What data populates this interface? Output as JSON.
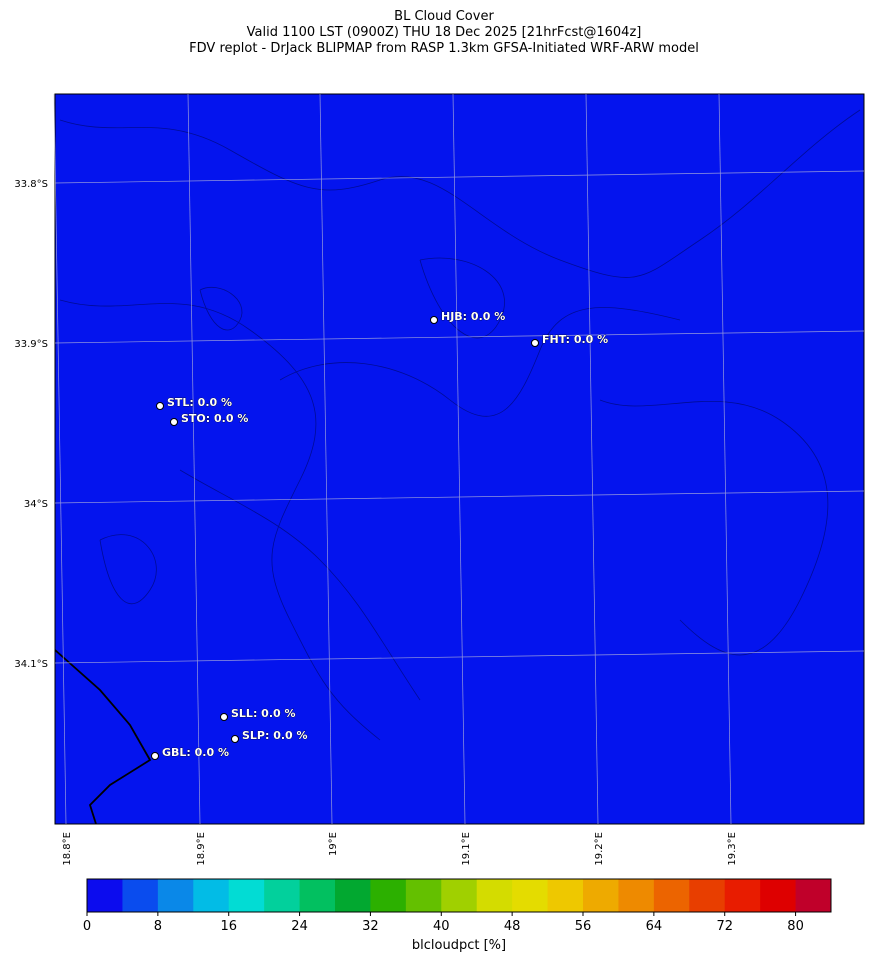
{
  "title": [
    "BL Cloud Cover",
    "Valid 1100 LST (0900Z) THU 18 Dec 2025 [21hrFcst@1604z]",
    "FDV replot - DrJack BLIPMAP from RASP 1.3km GFSA-Initiated WRF-ARW model"
  ],
  "map": {
    "lat_labels": [
      "33.8°S",
      "33.9°S",
      "34°S",
      "34.1°S"
    ],
    "lon_labels": [
      "18.8°E",
      "18.9°E",
      "19°E",
      "19.1°E",
      "19.2°E",
      "19.3°E"
    ],
    "stations": [
      "HJB: 0.0 %",
      "FHT: 0.0 %",
      "STL: 0.0 %",
      "STO: 0.0 %",
      "SLL: 0.0 %",
      "SLP: 0.0 %",
      "GBL: 0.0 %"
    ]
  },
  "colorbar": {
    "lim": [
      0,
      84
    ],
    "ticks": [
      0,
      8,
      16,
      24,
      32,
      40,
      48,
      56,
      64,
      72,
      80
    ],
    "label": "blcloudpct [%]",
    "colors": [
      "#0c0cee",
      "#0a4cee",
      "#0a88e8",
      "#02bce6",
      "#02dcd4",
      "#02d09c",
      "#02c060",
      "#02a830",
      "#2cb000",
      "#64c000",
      "#a0d000",
      "#d4dc00",
      "#e4dc00",
      "#eec800",
      "#eeaa00",
      "#ee8a00",
      "#ec6400",
      "#e83e00",
      "#e81c00",
      "#de0000",
      "#c0002a"
    ]
  }
}
